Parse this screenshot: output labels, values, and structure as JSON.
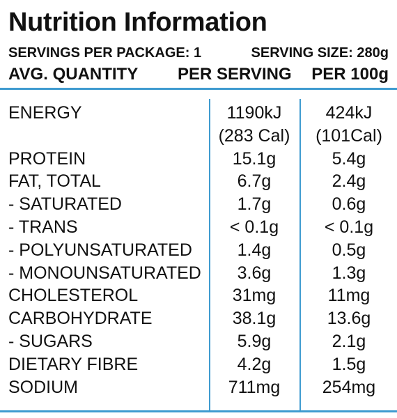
{
  "title": "Nutrition Information",
  "servings_per_package": "SERVINGS PER PACKAGE: 1",
  "serving_size": "SERVING SIZE: 280g",
  "columns": {
    "quantity": "AVG. QUANTITY",
    "per_serving": "PER SERVING",
    "per_100g": "PER 100g"
  },
  "colors": {
    "rule": "#3f9bd0",
    "text": "#111111"
  },
  "rows": [
    {
      "label": "ENERGY",
      "per_serving": "1190kJ",
      "per_serving_2": "(283 Cal)",
      "per_100g": "424kJ",
      "per_100g_2": "(101Cal)"
    },
    {
      "label": "PROTEIN",
      "per_serving": "15.1g",
      "per_100g": "5.4g"
    },
    {
      "label": "FAT, TOTAL",
      "per_serving": "6.7g",
      "per_100g": "2.4g"
    },
    {
      "label": "- SATURATED",
      "per_serving": "1.7g",
      "per_100g": "0.6g"
    },
    {
      "label": "- TRANS",
      "per_serving": "< 0.1g",
      "per_100g": "< 0.1g"
    },
    {
      "label": "- POLYUNSATURATED",
      "per_serving": "1.4g",
      "per_100g": "0.5g"
    },
    {
      "label": "- MONOUNSATURATED",
      "per_serving": "3.6g",
      "per_100g": "1.3g"
    },
    {
      "label": "CHOLESTEROL",
      "per_serving": "31mg",
      "per_100g": "11mg"
    },
    {
      "label": "CARBOHYDRATE",
      "per_serving": "38.1g",
      "per_100g": "13.6g"
    },
    {
      "label": "- SUGARS",
      "per_serving": "5.9g",
      "per_100g": "2.1g"
    },
    {
      "label": "DIETARY FIBRE",
      "per_serving": "4.2g",
      "per_100g": "1.5g"
    },
    {
      "label": "SODIUM",
      "per_serving": "711mg",
      "per_100g": "254mg"
    }
  ]
}
